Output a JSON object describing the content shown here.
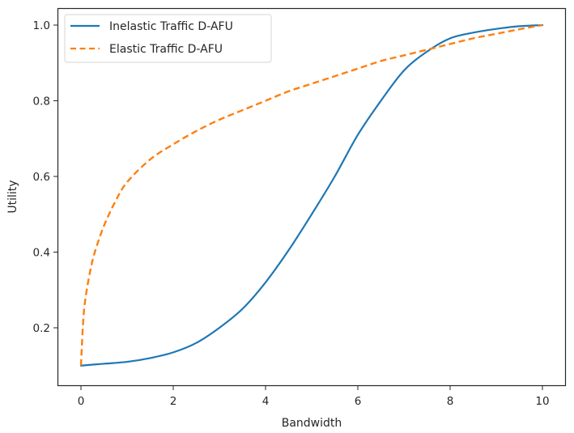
{
  "chart_data": {
    "type": "line",
    "title": "",
    "xlabel": "Bandwidth",
    "ylabel": "Utility",
    "xlim": [
      -0.5,
      10.5
    ],
    "ylim": [
      0.055,
      1.045
    ],
    "xticks": [
      0,
      2,
      4,
      6,
      8,
      10
    ],
    "xtick_labels": [
      "0",
      "2",
      "4",
      "6",
      "8",
      "10"
    ],
    "yticks": [
      0.2,
      0.4,
      0.6,
      0.8,
      1.0
    ],
    "ytick_labels": [
      "0.2",
      "0.4",
      "0.6",
      "0.8",
      "1.0"
    ],
    "grid": false,
    "legend_position": "upper left",
    "series": [
      {
        "name": "Inelastic Traffic D-AFU",
        "style": "solid",
        "color": "#1f77b4",
        "x": [
          0,
          0.5,
          1,
          1.5,
          2,
          2.5,
          3,
          3.5,
          4,
          4.5,
          5,
          5.5,
          6,
          6.5,
          7,
          7.5,
          8,
          8.5,
          9,
          9.5,
          10
        ],
        "y": [
          0.1,
          0.105,
          0.11,
          0.12,
          0.135,
          0.16,
          0.2,
          0.25,
          0.32,
          0.405,
          0.5,
          0.6,
          0.71,
          0.8,
          0.88,
          0.93,
          0.965,
          0.98,
          0.99,
          0.997,
          1.0
        ]
      },
      {
        "name": "Elastic Traffic D-AFU",
        "style": "dashed",
        "color": "#ff7f0e",
        "x": [
          0,
          0.05,
          0.1,
          0.2,
          0.3,
          0.5,
          0.75,
          1,
          1.5,
          2,
          2.5,
          3,
          3.5,
          4,
          4.5,
          5,
          5.5,
          6,
          6.5,
          7,
          7.5,
          8,
          8.5,
          9,
          9.5,
          10
        ],
        "y": [
          0.1,
          0.22,
          0.28,
          0.35,
          0.4,
          0.47,
          0.535,
          0.585,
          0.645,
          0.685,
          0.72,
          0.75,
          0.775,
          0.8,
          0.825,
          0.845,
          0.865,
          0.885,
          0.905,
          0.92,
          0.935,
          0.95,
          0.965,
          0.977,
          0.989,
          1.0
        ]
      }
    ]
  }
}
